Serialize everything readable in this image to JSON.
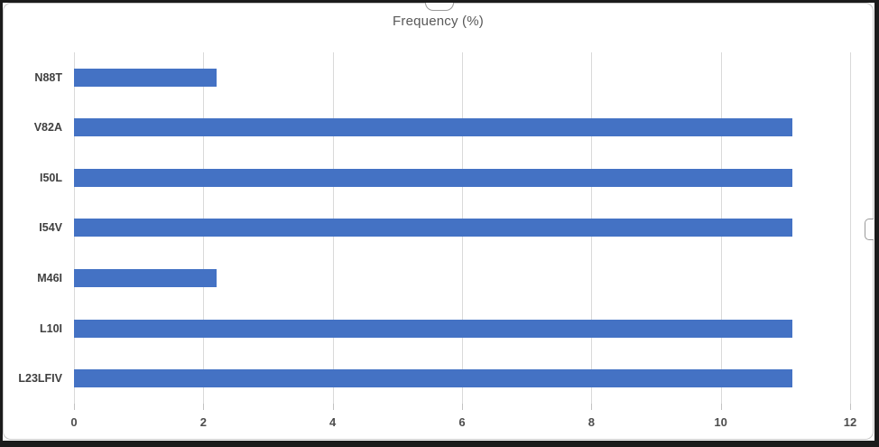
{
  "chart_data": {
    "type": "bar",
    "orientation": "horizontal",
    "title": "Frequency (%)",
    "categories": [
      "N88T",
      "V82A",
      "I50L",
      "I54V",
      "M46I",
      "L10I",
      "L23LFIV"
    ],
    "values": [
      2.2,
      11.1,
      11.1,
      11.1,
      2.2,
      11.1,
      11.1
    ],
    "xlabel": "",
    "ylabel": "",
    "xlim": [
      0,
      12
    ],
    "xticks": [
      0,
      2,
      4,
      6,
      8,
      10,
      12
    ],
    "grid": "vertical-major",
    "legend": "none",
    "bar_color": "#4472C4"
  },
  "colors": {
    "bar": "#4472C4",
    "gridline": "#D9D9D9",
    "tick_mark": "#C2C2C2",
    "title_text": "#595959",
    "axis_label_text": "#4D4D4D",
    "category_text": "#3F3F3F",
    "chart_border": "#C9C9C9",
    "outer_frame": "#1B1B1B",
    "background": "#FFFFFF"
  }
}
